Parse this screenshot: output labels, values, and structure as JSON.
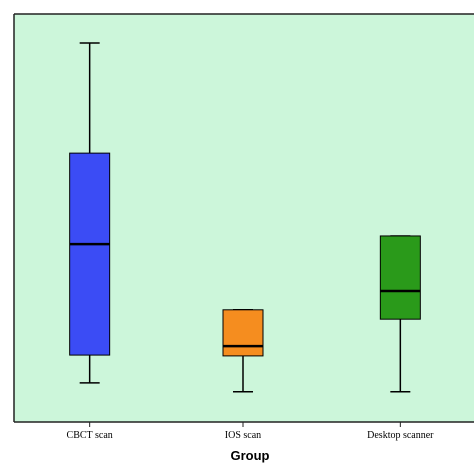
{
  "chart_data": {
    "type": "box",
    "x_label": "Group",
    "categories": [
      "CBCT scan",
      "IOS scan",
      "Desktop scanner"
    ],
    "boxes": [
      {
        "min": 9.6,
        "q1": 16.4,
        "median": 43.6,
        "q3": 65.9,
        "max": 92.9,
        "color": "#3b4cf5"
      },
      {
        "min": 7.4,
        "q1": 16.2,
        "median": 18.6,
        "q3": 27.5,
        "max": 27.5,
        "color": "#f58d1f"
      },
      {
        "min": 7.4,
        "q1": 25.2,
        "median": 32.1,
        "q3": 45.6,
        "max": 45.6,
        "color": "#2a9a1a"
      }
    ],
    "ylim": [
      0,
      100
    ],
    "background": "#ccf6da"
  }
}
